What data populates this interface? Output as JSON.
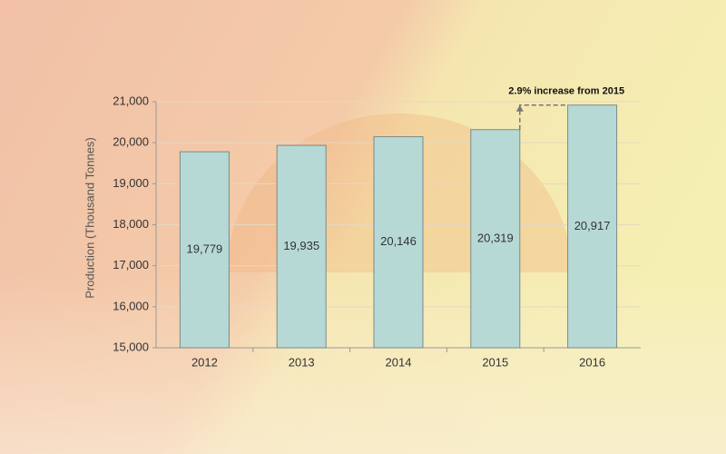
{
  "chart_data": {
    "type": "bar",
    "y_axis_label": "Production (Thousand Tonnes)",
    "annotation": "2.9% increase from 2015",
    "categories": [
      "2012",
      "2013",
      "2014",
      "2015",
      "2016"
    ],
    "values": [
      19779,
      19935,
      20146,
      20319,
      20917
    ],
    "value_labels": [
      "19,779",
      "19,935",
      "20,146",
      "20,319",
      "20,917"
    ],
    "color": "#b6d9d6",
    "ylim": [
      15000,
      21000
    ],
    "yticks": [
      {
        "value": 15000,
        "label": "15,000"
      },
      {
        "value": 16000,
        "label": "16,000"
      },
      {
        "value": 17000,
        "label": "17,000"
      },
      {
        "value": 18000,
        "label": "18,000"
      },
      {
        "value": 19000,
        "label": "19,000"
      },
      {
        "value": 20000,
        "label": "20,000"
      },
      {
        "value": 21000,
        "label": "21,000"
      }
    ],
    "grid": true
  }
}
